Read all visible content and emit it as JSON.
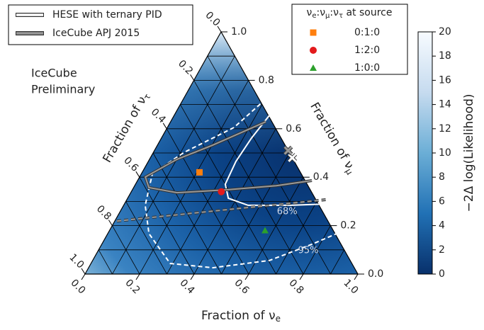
{
  "chart_data": {
    "type": "ternary",
    "xlabel": [
      "Fraction of ν",
      "e"
    ],
    "ylabel": [
      "Fraction of ν",
      "μ"
    ],
    "zlabel": [
      "Fraction of ν",
      "τ"
    ],
    "ticks": [
      {
        "value": 0,
        "label": "0.0"
      },
      0.2,
      0.4,
      0.6,
      0.8,
      {
        "value": 1,
        "label": "1.0"
      }
    ],
    "minor_ticks": [
      0.1,
      0.3,
      0.5,
      0.7,
      0.9
    ],
    "grid": true,
    "annotation": [
      "IceCube",
      "Preliminary"
    ],
    "annotation_color": "#ff2020",
    "contours": [
      {
        "name": "HESE with ternary PID",
        "color": "#ffffff",
        "best_fit": {
          "fe": 0.52,
          "fmu": 0.48
        },
        "levels": [
          {
            "label": "68%",
            "style": "solid",
            "fe": [
              0.349,
              0.33,
              0.321,
              0.329,
              0.369,
              0.456,
              0.612,
              0.726
            ],
            "fmu": [
              0.655,
              0.561,
              0.465,
              0.371,
              0.313,
              0.284,
              0.284,
              0.289
            ]
          },
          {
            "label": "95%",
            "style": "dashed",
            "fe": [
              0.302,
              0.244,
              0.113,
              0.04,
              0.079,
              0.151,
              0.29,
              0.455,
              0.648,
              0.77,
              0.849
            ],
            "fmu": [
              0.722,
              0.605,
              0.503,
              0.415,
              0.284,
              0.167,
              0.044,
              0.026,
              0.056,
              0.123,
              0.173
            ]
          }
        ]
      },
      {
        "name": "IceCube APJ 2015",
        "color": "#999999",
        "best_fit": {
          "fe": 0.49,
          "fmu": 0.51
        },
        "levels": [
          {
            "style": "solid",
            "fe": [
              0.349,
              0.202,
              0.101,
              0.021,
              0.056,
              0.17,
              0.346,
              0.519,
              0.639
            ],
            "fmu": [
              0.629,
              0.532,
              0.474,
              0.401,
              0.357,
              0.336,
              0.348,
              0.365,
              0.386
            ]
          },
          {
            "style": "dashed",
            "fe": [
              0.008,
              0.338,
              0.73
            ],
            "fmu": [
              0.219,
              0.26,
              0.307
            ]
          }
        ]
      }
    ],
    "source_title": [
      "ν",
      "e",
      ":ν",
      "μ",
      ":ν",
      "τ",
      " at source"
    ],
    "sources": [
      {
        "name": "0:1:0",
        "color": "#ff7f0e",
        "marker": "square",
        "fe": 0.21,
        "fmu": 0.42
      },
      {
        "name": "1:2:0",
        "color": "#e31a1c",
        "marker": "circle",
        "fe": 0.33,
        "fmu": 0.34
      },
      {
        "name": "1:0:0",
        "color": "#2ca02c",
        "marker": "triangle",
        "fe": 0.57,
        "fmu": 0.18
      }
    ],
    "colorbar": {
      "label": "−2Δ log(Likelihood)",
      "lim": [
        0,
        20
      ],
      "ticks": [
        0,
        2,
        4,
        6,
        8,
        10,
        12,
        14,
        16,
        18,
        20
      ],
      "colormap": [
        "#08306b",
        "#2171b5",
        "#6baed6",
        "#c6dbef",
        "#f7fbff"
      ]
    }
  }
}
